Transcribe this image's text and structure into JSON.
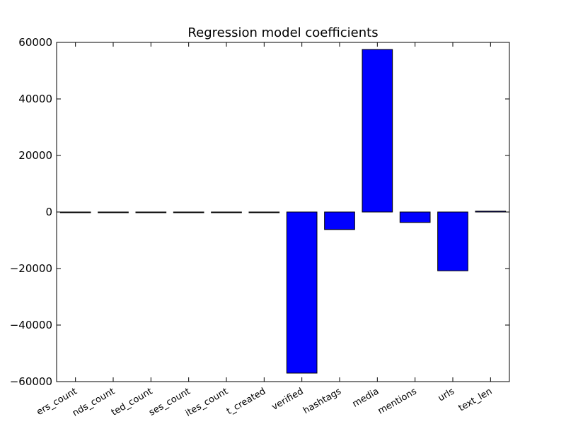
{
  "chart_data": {
    "type": "bar",
    "title": "Regression model coefficients",
    "xlabel": "",
    "ylabel": "",
    "ylim": [
      -60000,
      60000
    ],
    "yticks": [
      -60000,
      -40000,
      -20000,
      0,
      20000,
      40000,
      60000
    ],
    "ytick_labels": [
      "−60000",
      "−40000",
      "−20000",
      "0",
      "20000",
      "40000",
      "60000"
    ],
    "categories": [
      "followers_count",
      "friends_count",
      "listed_count",
      "statuses_count",
      "favourites_count",
      "account_created",
      "verified",
      "hashtags",
      "media",
      "user_mentions",
      "urls",
      "text_len"
    ],
    "tick_labels_visible": [
      "ers_count",
      "nds_count",
      "ted_count",
      "ses_count",
      "ites_count",
      "t_created",
      "verified",
      "hashtags",
      "media",
      "mentions",
      "urls",
      "text_len"
    ],
    "values": [
      -5,
      -5,
      -5,
      -5,
      -5,
      -5,
      -57000,
      -6200,
      57500,
      -3700,
      -20800,
      300
    ],
    "grid": false,
    "legend": "none",
    "colors": {
      "bar_fill": "#0000ff",
      "bar_edge": "#000000",
      "axes": "#000000",
      "background": "#ffffff"
    }
  }
}
